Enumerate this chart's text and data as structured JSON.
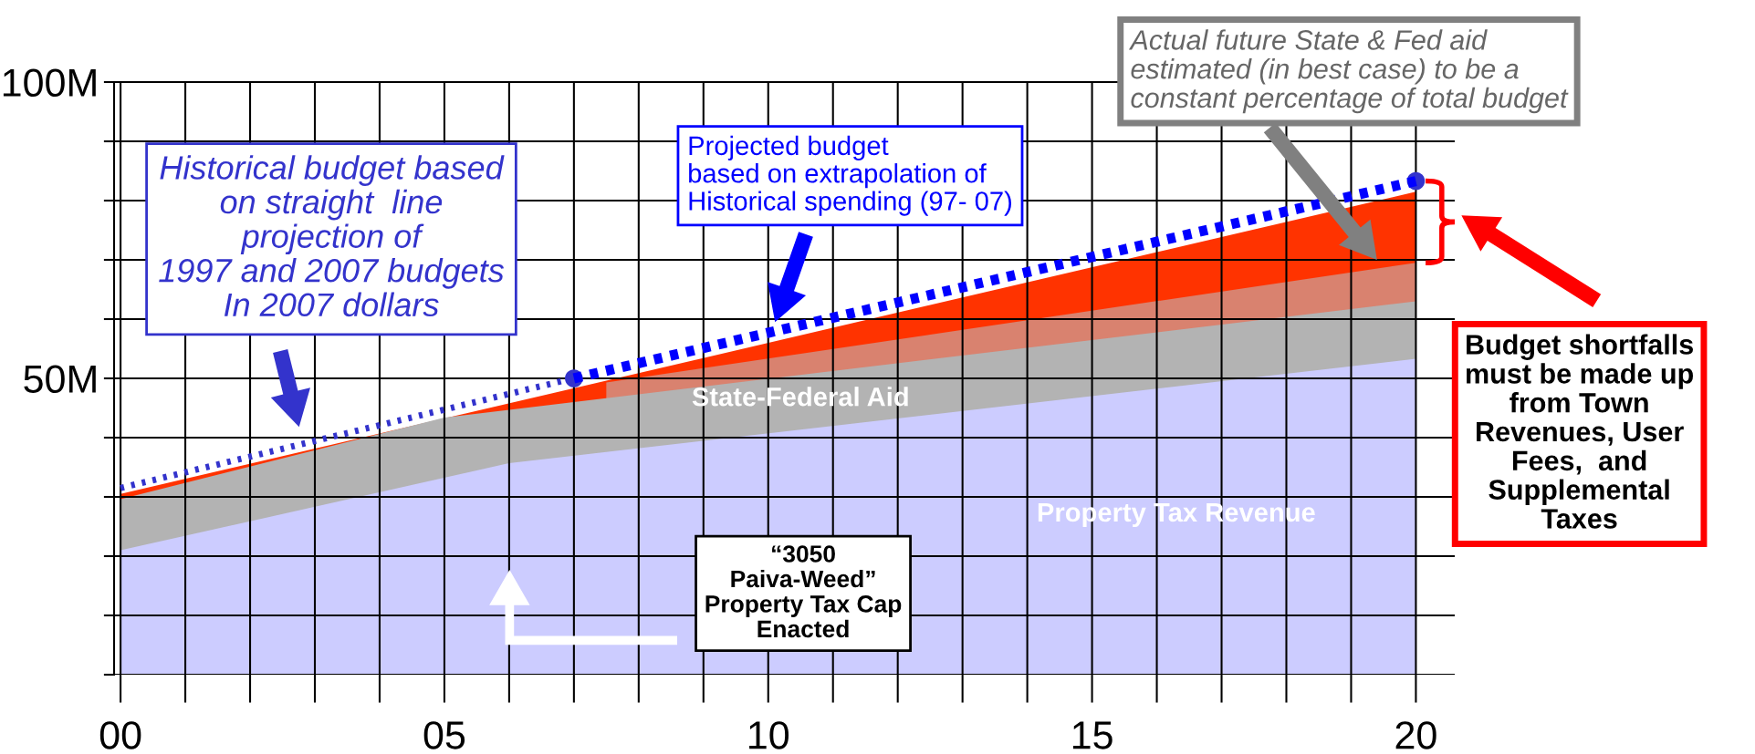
{
  "chart_data": {
    "type": "area",
    "xlim": [
      -0.1,
      20.6
    ],
    "xticks": [
      {
        "value": 0,
        "label": "00"
      },
      {
        "value": 1,
        "label": null
      },
      {
        "value": 2,
        "label": null
      },
      {
        "value": 3,
        "label": null
      },
      {
        "value": 4,
        "label": null
      },
      {
        "value": 5,
        "label": "05"
      },
      {
        "value": 6,
        "label": null
      },
      {
        "value": 7,
        "label": null
      },
      {
        "value": 8,
        "label": null
      },
      {
        "value": 9,
        "label": null
      },
      {
        "value": 10,
        "label": "10"
      },
      {
        "value": 11,
        "label": null
      },
      {
        "value": 12,
        "label": null
      },
      {
        "value": 13,
        "label": null
      },
      {
        "value": 14,
        "label": null
      },
      {
        "value": 15,
        "label": "15"
      },
      {
        "value": 16,
        "label": null
      },
      {
        "value": 17,
        "label": null
      },
      {
        "value": 18,
        "label": null
      },
      {
        "value": 19,
        "label": null
      },
      {
        "value": 20,
        "label": "20"
      }
    ],
    "ylim": [
      0,
      100
    ],
    "yticks": [
      {
        "value": 0,
        "label": null
      },
      {
        "value": 10,
        "label": null
      },
      {
        "value": 20,
        "label": null
      },
      {
        "value": 30,
        "label": null
      },
      {
        "value": 40,
        "label": null
      },
      {
        "value": 50,
        "label": "50M"
      },
      {
        "value": 60,
        "label": null
      },
      {
        "value": 70,
        "label": null
      },
      {
        "value": 80,
        "label": null
      },
      {
        "value": 90,
        "label": null
      },
      {
        "value": 100,
        "label": "100M"
      }
    ],
    "grid": true,
    "legend": false,
    "series": [
      {
        "color": "#ff3300",
        "x": [
          0,
          20
        ],
        "values": [
          30.5,
          81.5
        ]
      },
      {
        "color": "#d9826f",
        "x": [
          7.5,
          20
        ],
        "values": [
          49.3,
          69.5
        ]
      },
      {
        "name": "State-Federal Aid",
        "color": "#b3b3b3",
        "x": [
          0,
          5,
          20
        ],
        "values": [
          29.6,
          43.4,
          63
        ]
      },
      {
        "name": "Property Tax Revenue",
        "color": "#ccccff",
        "x": [
          0,
          6,
          20
        ],
        "values": [
          21,
          35.7,
          53.3
        ]
      },
      {
        "type": "line",
        "color": "#3333cc",
        "line_style": "dotted",
        "x": [
          0,
          6.8
        ],
        "values": [
          31.5,
          49.5
        ]
      },
      {
        "type": "line",
        "color": "#0000ff",
        "line_style": "dashed",
        "x": [
          7,
          20
        ],
        "values": [
          50,
          83.3
        ]
      },
      {
        "type": "scatter",
        "color": "#3333cc",
        "marker": "circle",
        "x": [
          7,
          20
        ],
        "values": [
          50,
          83.3
        ]
      }
    ],
    "annotations": [
      "Historical budget based\non straight  line\nprojection of\n1997 and 2007 budgets\nIn 2007 dollars",
      "Projected budget\nbased on extrapolation of\nHistorical spending (97- 07)",
      "Actual future State & Fed aid\nestimated (in best case) to be a\nconstant percentage of total budget",
      "Budget shortfalls\nmust be made up\nfrom Town\nRevenues, User\nFees,  and\nSupplemental\nTaxes",
      "“3050\nPaiva-Weed”\nProperty Tax Cap\nEnacted"
    ]
  }
}
